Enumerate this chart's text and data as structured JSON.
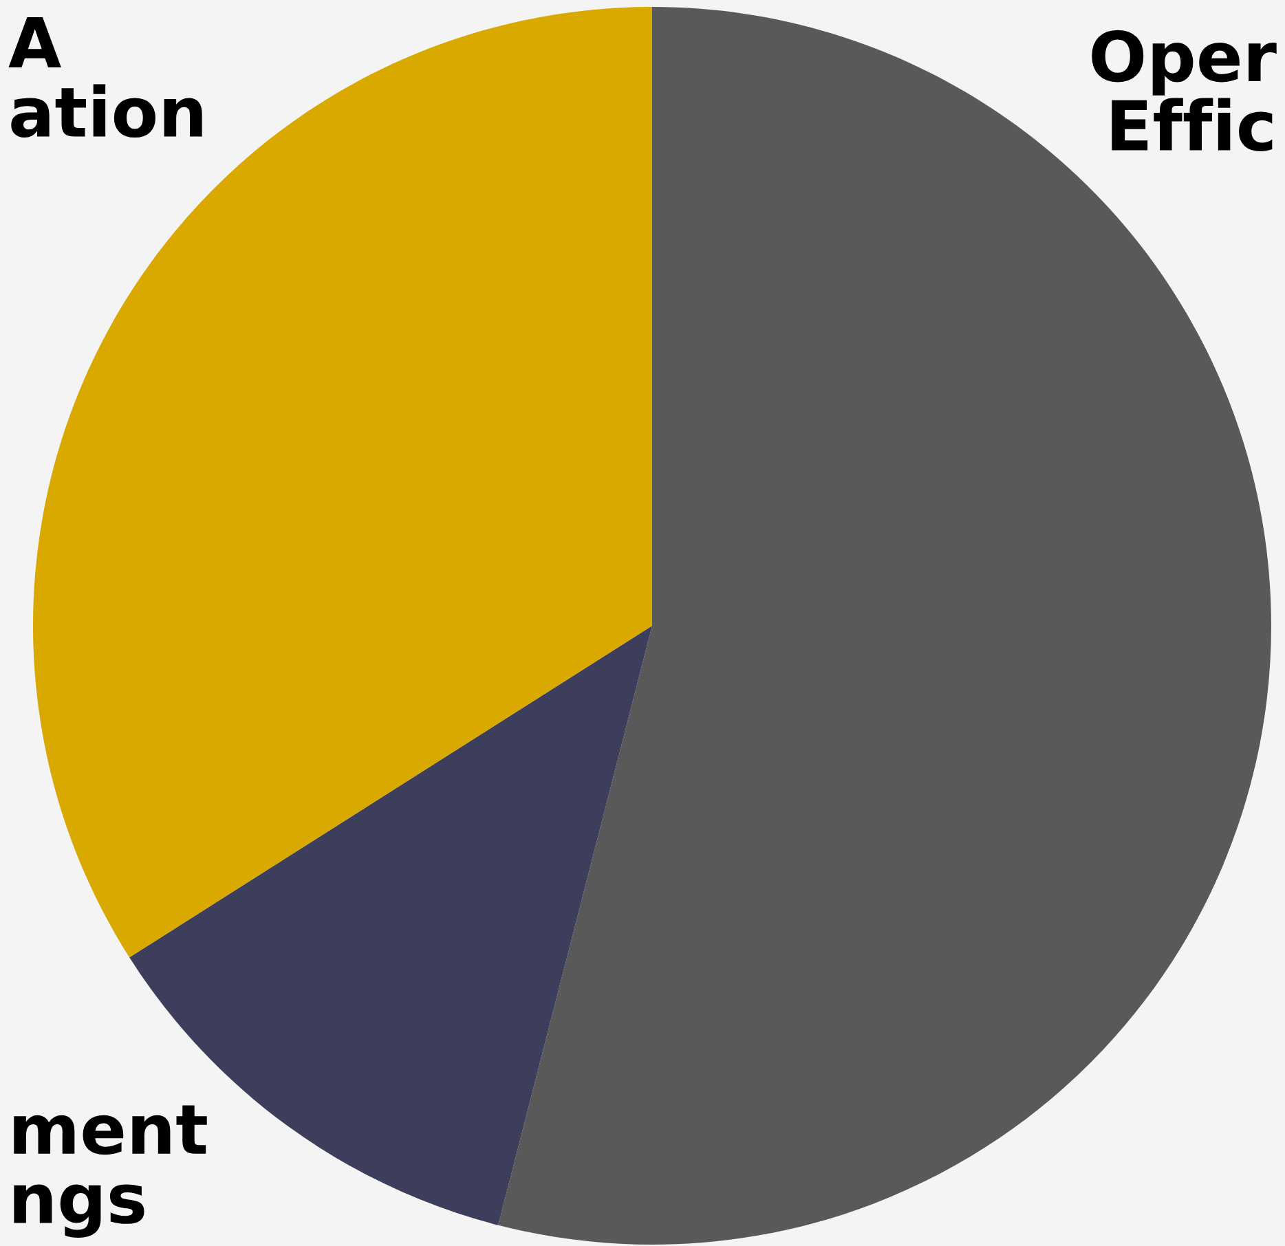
{
  "chart_data": {
    "type": "pie",
    "categories": [
      "Oper\nEffic",
      "ment\nngs",
      "A\nation"
    ],
    "values": [
      54,
      12,
      34
    ],
    "colors": [
      "#595959",
      "#3d3d5c",
      "#d9a900"
    ]
  }
}
